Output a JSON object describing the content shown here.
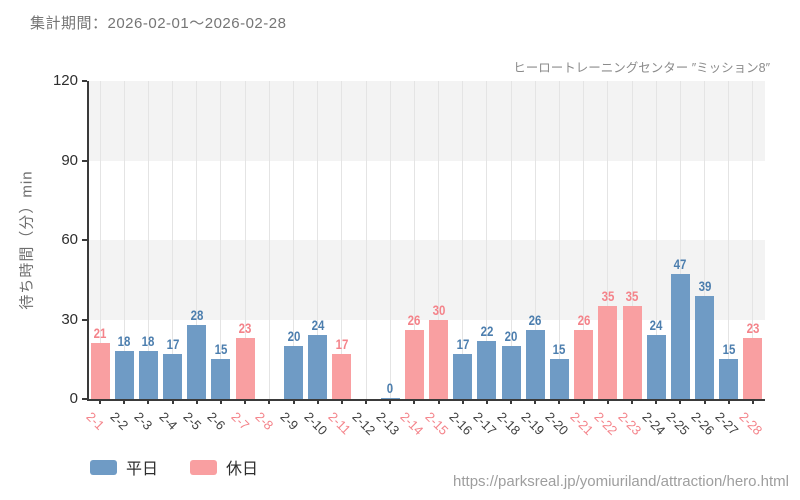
{
  "header": {
    "period_label": "集計期間：2026-02-01～2026-02-28"
  },
  "chart_data": {
    "type": "bar",
    "title": "ヒーロートレーニングセンター ″ミッション8″",
    "ylabel": "待ち時間（分）min",
    "ylim": [
      0,
      120
    ],
    "yticks": [
      0,
      30,
      60,
      90,
      120
    ],
    "grid": "vertical-per-category, alternating horizontal bands",
    "legend_position": "bottom-left",
    "categories": [
      "2-1",
      "2-2",
      "2-3",
      "2-4",
      "2-5",
      "2-6",
      "2-7",
      "2-8",
      "2-9",
      "2-10",
      "2-11",
      "2-12",
      "2-13",
      "2-14",
      "2-15",
      "2-16",
      "2-17",
      "2-18",
      "2-19",
      "2-20",
      "2-21",
      "2-22",
      "2-23",
      "2-24",
      "2-25",
      "2-26",
      "2-27",
      "2-28"
    ],
    "points": [
      {
        "date": "2-1",
        "value": 21,
        "type": "holiday"
      },
      {
        "date": "2-2",
        "value": 18,
        "type": "weekday"
      },
      {
        "date": "2-3",
        "value": 18,
        "type": "weekday"
      },
      {
        "date": "2-4",
        "value": 17,
        "type": "weekday"
      },
      {
        "date": "2-5",
        "value": 28,
        "type": "weekday"
      },
      {
        "date": "2-6",
        "value": 15,
        "type": "weekday"
      },
      {
        "date": "2-7",
        "value": 23,
        "type": "holiday"
      },
      {
        "date": "2-8",
        "value": null,
        "type": "holiday"
      },
      {
        "date": "2-9",
        "value": 20,
        "type": "weekday"
      },
      {
        "date": "2-10",
        "value": 24,
        "type": "weekday"
      },
      {
        "date": "2-11",
        "value": 17,
        "type": "holiday"
      },
      {
        "date": "2-12",
        "value": null,
        "type": "weekday"
      },
      {
        "date": "2-13",
        "value": 0,
        "type": "weekday"
      },
      {
        "date": "2-14",
        "value": 26,
        "type": "holiday"
      },
      {
        "date": "2-15",
        "value": 30,
        "type": "holiday"
      },
      {
        "date": "2-16",
        "value": 17,
        "type": "weekday"
      },
      {
        "date": "2-17",
        "value": 22,
        "type": "weekday"
      },
      {
        "date": "2-18",
        "value": 20,
        "type": "weekday"
      },
      {
        "date": "2-19",
        "value": 26,
        "type": "weekday"
      },
      {
        "date": "2-20",
        "value": 15,
        "type": "weekday"
      },
      {
        "date": "2-21",
        "value": 26,
        "type": "holiday"
      },
      {
        "date": "2-22",
        "value": 35,
        "type": "holiday"
      },
      {
        "date": "2-23",
        "value": 35,
        "type": "holiday"
      },
      {
        "date": "2-24",
        "value": 24,
        "type": "weekday"
      },
      {
        "date": "2-25",
        "value": 47,
        "type": "weekday"
      },
      {
        "date": "2-26",
        "value": 39,
        "type": "weekday"
      },
      {
        "date": "2-27",
        "value": 15,
        "type": "weekday"
      },
      {
        "date": "2-28",
        "value": 23,
        "type": "holiday"
      }
    ]
  },
  "colors": {
    "bar_weekday": "#6f9bc5",
    "bar_holiday": "#f99fa1",
    "value_label_weekday": "#4c7eae",
    "value_label_holiday": "#f4838a",
    "xtick_weekday": "#3f3f3f",
    "xtick_holiday": "#f4838a"
  },
  "legend": {
    "items": [
      {
        "label": "平日",
        "color": "#6f9bc5"
      },
      {
        "label": "休日",
        "color": "#f99fa1"
      }
    ]
  },
  "footer": {
    "url": "https://parksreal.jp/yomiuriland/attraction/hero.html"
  }
}
